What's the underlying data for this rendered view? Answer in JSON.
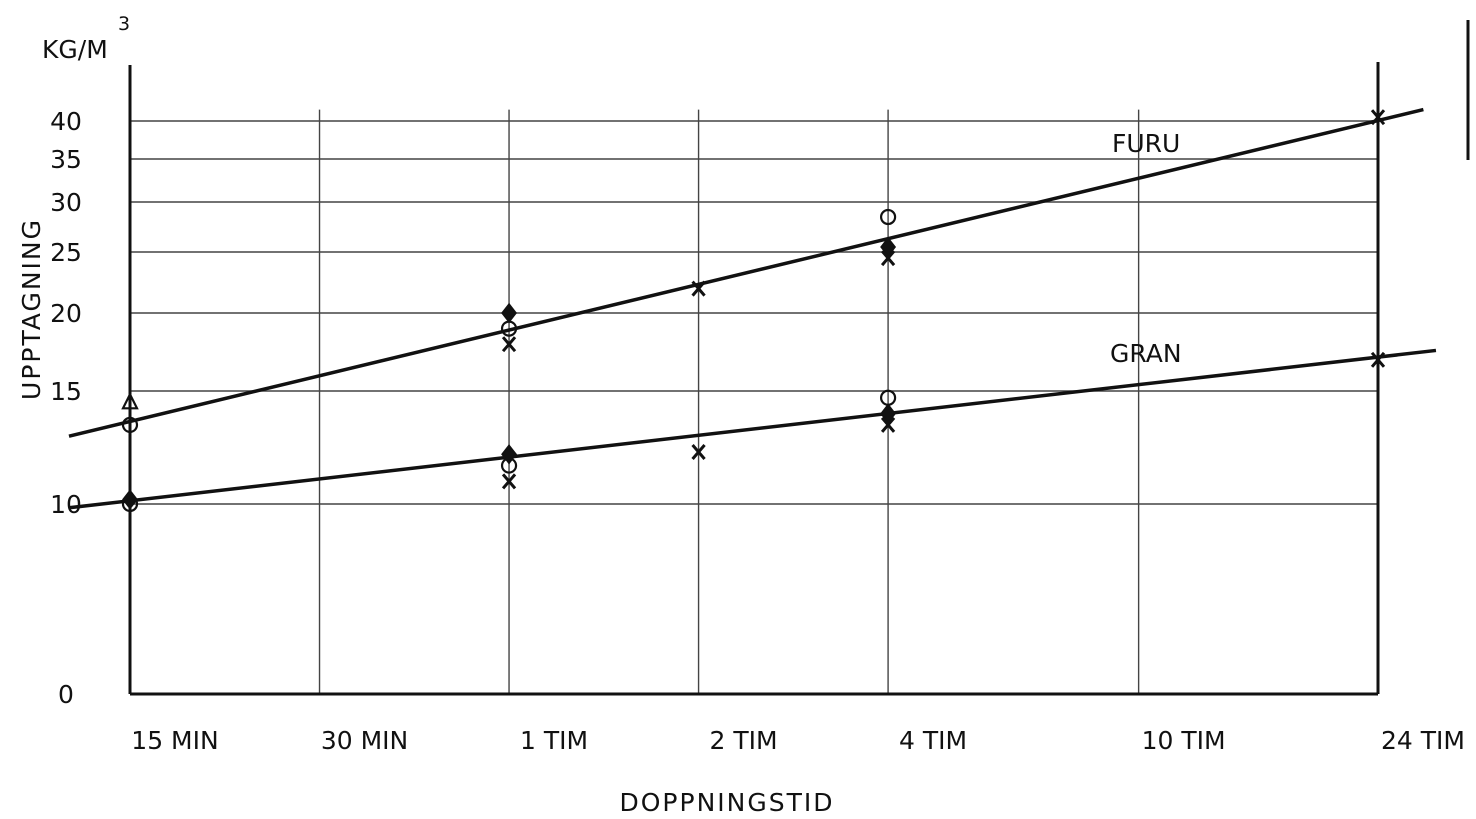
{
  "chart_data": {
    "type": "scatter",
    "title": "",
    "xlabel": "DOPPNINGSTID",
    "ylabel": "UPPTAGNING",
    "yunit_base": "KG/M",
    "yunit_exp": "3",
    "x_scale": "log",
    "y_scale": "nonlinear (compressed near 0)",
    "grid": true,
    "x_ticks": [
      {
        "label": "15 MIN",
        "minutes": 15
      },
      {
        "label": "30 MIN",
        "minutes": 30
      },
      {
        "label": "1 TIM",
        "minutes": 60
      },
      {
        "label": "2 TIM",
        "minutes": 120
      },
      {
        "label": "4 TIM",
        "minutes": 240
      },
      {
        "label": "10 TIM",
        "minutes": 600
      },
      {
        "label": "24 TIM",
        "minutes": 1440
      }
    ],
    "y_ticks": [
      {
        "label": "0",
        "value": 0
      },
      {
        "label": "10",
        "value": 10
      },
      {
        "label": "15",
        "value": 15
      },
      {
        "label": "20",
        "value": 20
      },
      {
        "label": "25",
        "value": 25
      },
      {
        "label": "30",
        "value": 30
      },
      {
        "label": "35",
        "value": 35
      },
      {
        "label": "40",
        "value": 40
      }
    ],
    "series": [
      {
        "name": "FURU",
        "fit_line": [
          {
            "minutes": 12,
            "value": 13
          },
          {
            "minutes": 1700,
            "value": 41.5
          }
        ],
        "points": [
          {
            "minutes": 15,
            "value": 14.5,
            "marker": "triangle"
          },
          {
            "minutes": 15,
            "value": 13.5,
            "marker": "circle"
          },
          {
            "minutes": 60,
            "value": 20,
            "marker": "diamond"
          },
          {
            "minutes": 60,
            "value": 19,
            "marker": "circle"
          },
          {
            "minutes": 60,
            "value": 18,
            "marker": "cross"
          },
          {
            "minutes": 120,
            "value": 22,
            "marker": "cross"
          },
          {
            "minutes": 240,
            "value": 28.5,
            "marker": "circle"
          },
          {
            "minutes": 240,
            "value": 25.5,
            "marker": "diamond"
          },
          {
            "minutes": 240,
            "value": 24.5,
            "marker": "cross"
          },
          {
            "minutes": 1440,
            "value": 40.5,
            "marker": "cross"
          }
        ]
      },
      {
        "name": "GRAN",
        "fit_line": [
          {
            "minutes": 12,
            "value": 9.8
          },
          {
            "minutes": 1780,
            "value": 17.6
          }
        ],
        "points": [
          {
            "minutes": 15,
            "value": 10.2,
            "marker": "diamond"
          },
          {
            "minutes": 15,
            "value": 10,
            "marker": "circle"
          },
          {
            "minutes": 60,
            "value": 12.2,
            "marker": "diamond"
          },
          {
            "minutes": 60,
            "value": 11.7,
            "marker": "circle"
          },
          {
            "minutes": 60,
            "value": 11,
            "marker": "cross"
          },
          {
            "minutes": 120,
            "value": 12.3,
            "marker": "cross"
          },
          {
            "minutes": 240,
            "value": 14.7,
            "marker": "circle"
          },
          {
            "minutes": 240,
            "value": 14,
            "marker": "diamond"
          },
          {
            "minutes": 240,
            "value": 13.5,
            "marker": "cross"
          },
          {
            "minutes": 1440,
            "value": 17,
            "marker": "cross"
          }
        ]
      }
    ]
  }
}
